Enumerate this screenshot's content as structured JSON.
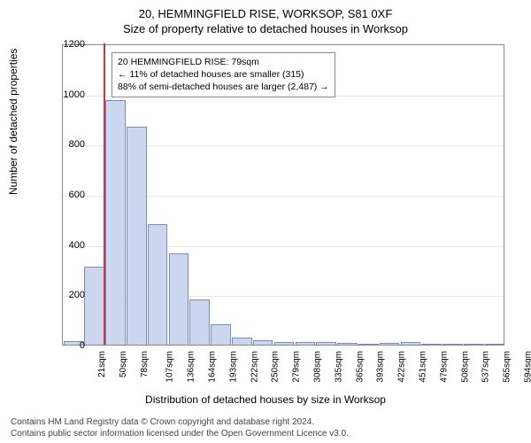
{
  "title": "20, HEMMINGFIELD RISE, WORKSOP, S81 0XF",
  "subtitle": "Size of property relative to detached houses in Worksop",
  "ylabel": "Number of detached properties",
  "xlabel": "Distribution of detached houses by size in Worksop",
  "y": {
    "min": 0,
    "max": 1200,
    "step": 200
  },
  "x_categories": [
    "21sqm",
    "50sqm",
    "78sqm",
    "107sqm",
    "136sqm",
    "164sqm",
    "193sqm",
    "222sqm",
    "250sqm",
    "279sqm",
    "308sqm",
    "335sqm",
    "365sqm",
    "393sqm",
    "422sqm",
    "451sqm",
    "479sqm",
    "508sqm",
    "537sqm",
    "565sqm",
    "594sqm"
  ],
  "bars": [
    15,
    310,
    975,
    870,
    480,
    365,
    180,
    80,
    30,
    18,
    12,
    12,
    10,
    8,
    0,
    6,
    10,
    0,
    0,
    0,
    0
  ],
  "bar_fill": "#ccd7ef",
  "bar_stroke": "#7a8db8",
  "marker_color": "#cc3344",
  "marker_x_ratio": 0.092,
  "annotation": {
    "line1": "20 HEMMINGFIELD RISE: 79sqm",
    "line2": "← 11% of detached houses are smaller (315)",
    "line3": "88% of semi-detached houses are larger (2,487) →"
  },
  "footer1": "Contains HM Land Registry data © Crown copyright and database right 2024.",
  "footer2": "Contains public sector information licensed under the Open Government Licence v3.0."
}
